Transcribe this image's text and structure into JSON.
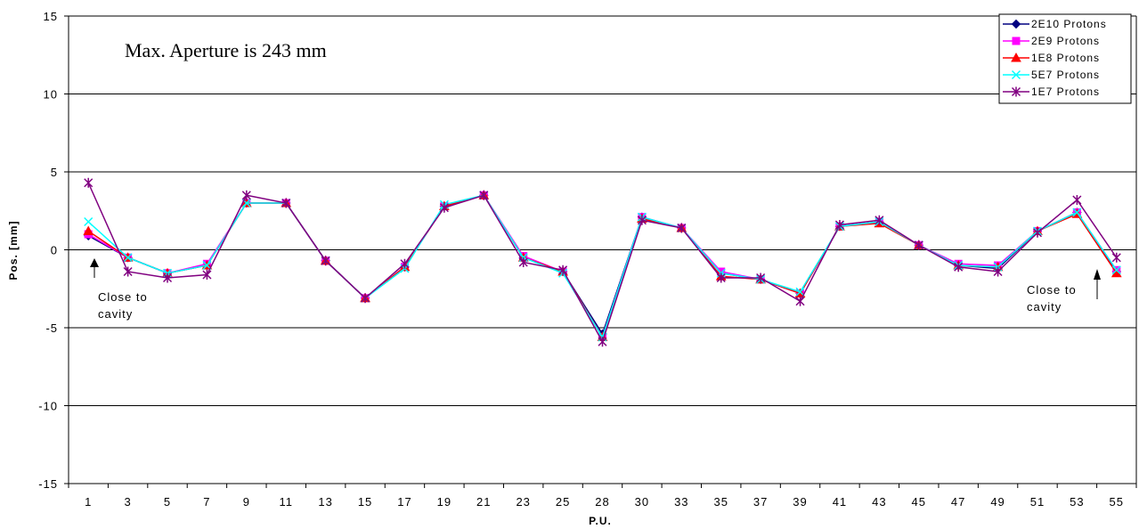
{
  "chart_data": {
    "type": "line",
    "xlabel": "P.U.",
    "ylabel": "Pos. [mm]",
    "ylim": [
      -15,
      15
    ],
    "yticks": [
      "15",
      "10",
      "5",
      "0",
      "-5",
      "-10",
      "-15"
    ],
    "grid": "horizontal major gridlines",
    "legend_position": "top-right",
    "categories": [
      "1",
      "3",
      "5",
      "7",
      "9",
      "11",
      "13",
      "15",
      "17",
      "19",
      "21",
      "23",
      "25",
      "28",
      "30",
      "33",
      "35",
      "37",
      "39",
      "41",
      "43",
      "45",
      "47",
      "49",
      "51",
      "53",
      "55"
    ],
    "series": [
      {
        "name": "2E10 Protons",
        "color": "#000080",
        "marker": "diamond",
        "values": [
          0.9,
          -0.5,
          -1.5,
          -1.0,
          3.0,
          3.0,
          -0.7,
          -3.1,
          -1.1,
          2.8,
          3.5,
          -0.5,
          -1.4,
          -5.4,
          2.1,
          1.4,
          -1.5,
          -1.9,
          -2.8,
          1.5,
          1.8,
          0.3,
          -1.0,
          -1.2,
          1.2,
          2.4,
          -1.4
        ]
      },
      {
        "name": "2E9 Protons",
        "color": "#FF00FF",
        "marker": "square",
        "values": [
          1.0,
          -0.5,
          -1.5,
          -0.9,
          3.0,
          3.0,
          -0.7,
          -3.1,
          -1.1,
          2.8,
          3.5,
          -0.4,
          -1.4,
          -5.6,
          2.1,
          1.4,
          -1.4,
          -1.9,
          -2.8,
          1.5,
          1.8,
          0.3,
          -0.9,
          -1.0,
          1.2,
          2.4,
          -1.3
        ]
      },
      {
        "name": "1E8 Protons",
        "color": "#FF0000",
        "marker": "triangle",
        "values": [
          1.2,
          -0.5,
          -1.5,
          -1.0,
          3.0,
          3.0,
          -0.7,
          -3.1,
          -1.1,
          2.8,
          3.5,
          -0.5,
          -1.4,
          -5.6,
          2.0,
          1.4,
          -1.7,
          -1.9,
          -2.8,
          1.5,
          1.7,
          0.3,
          -1.0,
          -1.1,
          1.2,
          2.3,
          -1.5
        ]
      },
      {
        "name": "5E7 Protons",
        "color": "#00FFFF",
        "marker": "x",
        "values": [
          1.8,
          -0.5,
          -1.5,
          -1.0,
          3.0,
          3.0,
          -0.7,
          -3.1,
          -1.2,
          2.9,
          3.5,
          -0.5,
          -1.5,
          -5.6,
          2.1,
          1.4,
          -1.5,
          -1.9,
          -2.7,
          1.5,
          1.8,
          0.3,
          -1.0,
          -1.1,
          1.2,
          2.4,
          -1.3
        ]
      },
      {
        "name": "1E7 Protons",
        "color": "#800080",
        "marker": "star",
        "values": [
          4.3,
          -1.4,
          -1.8,
          -1.6,
          3.5,
          3.0,
          -0.7,
          -3.1,
          -0.9,
          2.7,
          3.5,
          -0.8,
          -1.3,
          -5.9,
          1.9,
          1.4,
          -1.8,
          -1.8,
          -3.3,
          1.6,
          1.9,
          0.3,
          -1.1,
          -1.4,
          1.1,
          3.2,
          -0.5
        ]
      }
    ],
    "annotations": {
      "aperture": "Max. Aperture is 243 mm",
      "close_left_line1": "Close to",
      "close_left_line2": "cavity",
      "close_right_line1": "Close to",
      "close_right_line2": "cavity"
    }
  }
}
